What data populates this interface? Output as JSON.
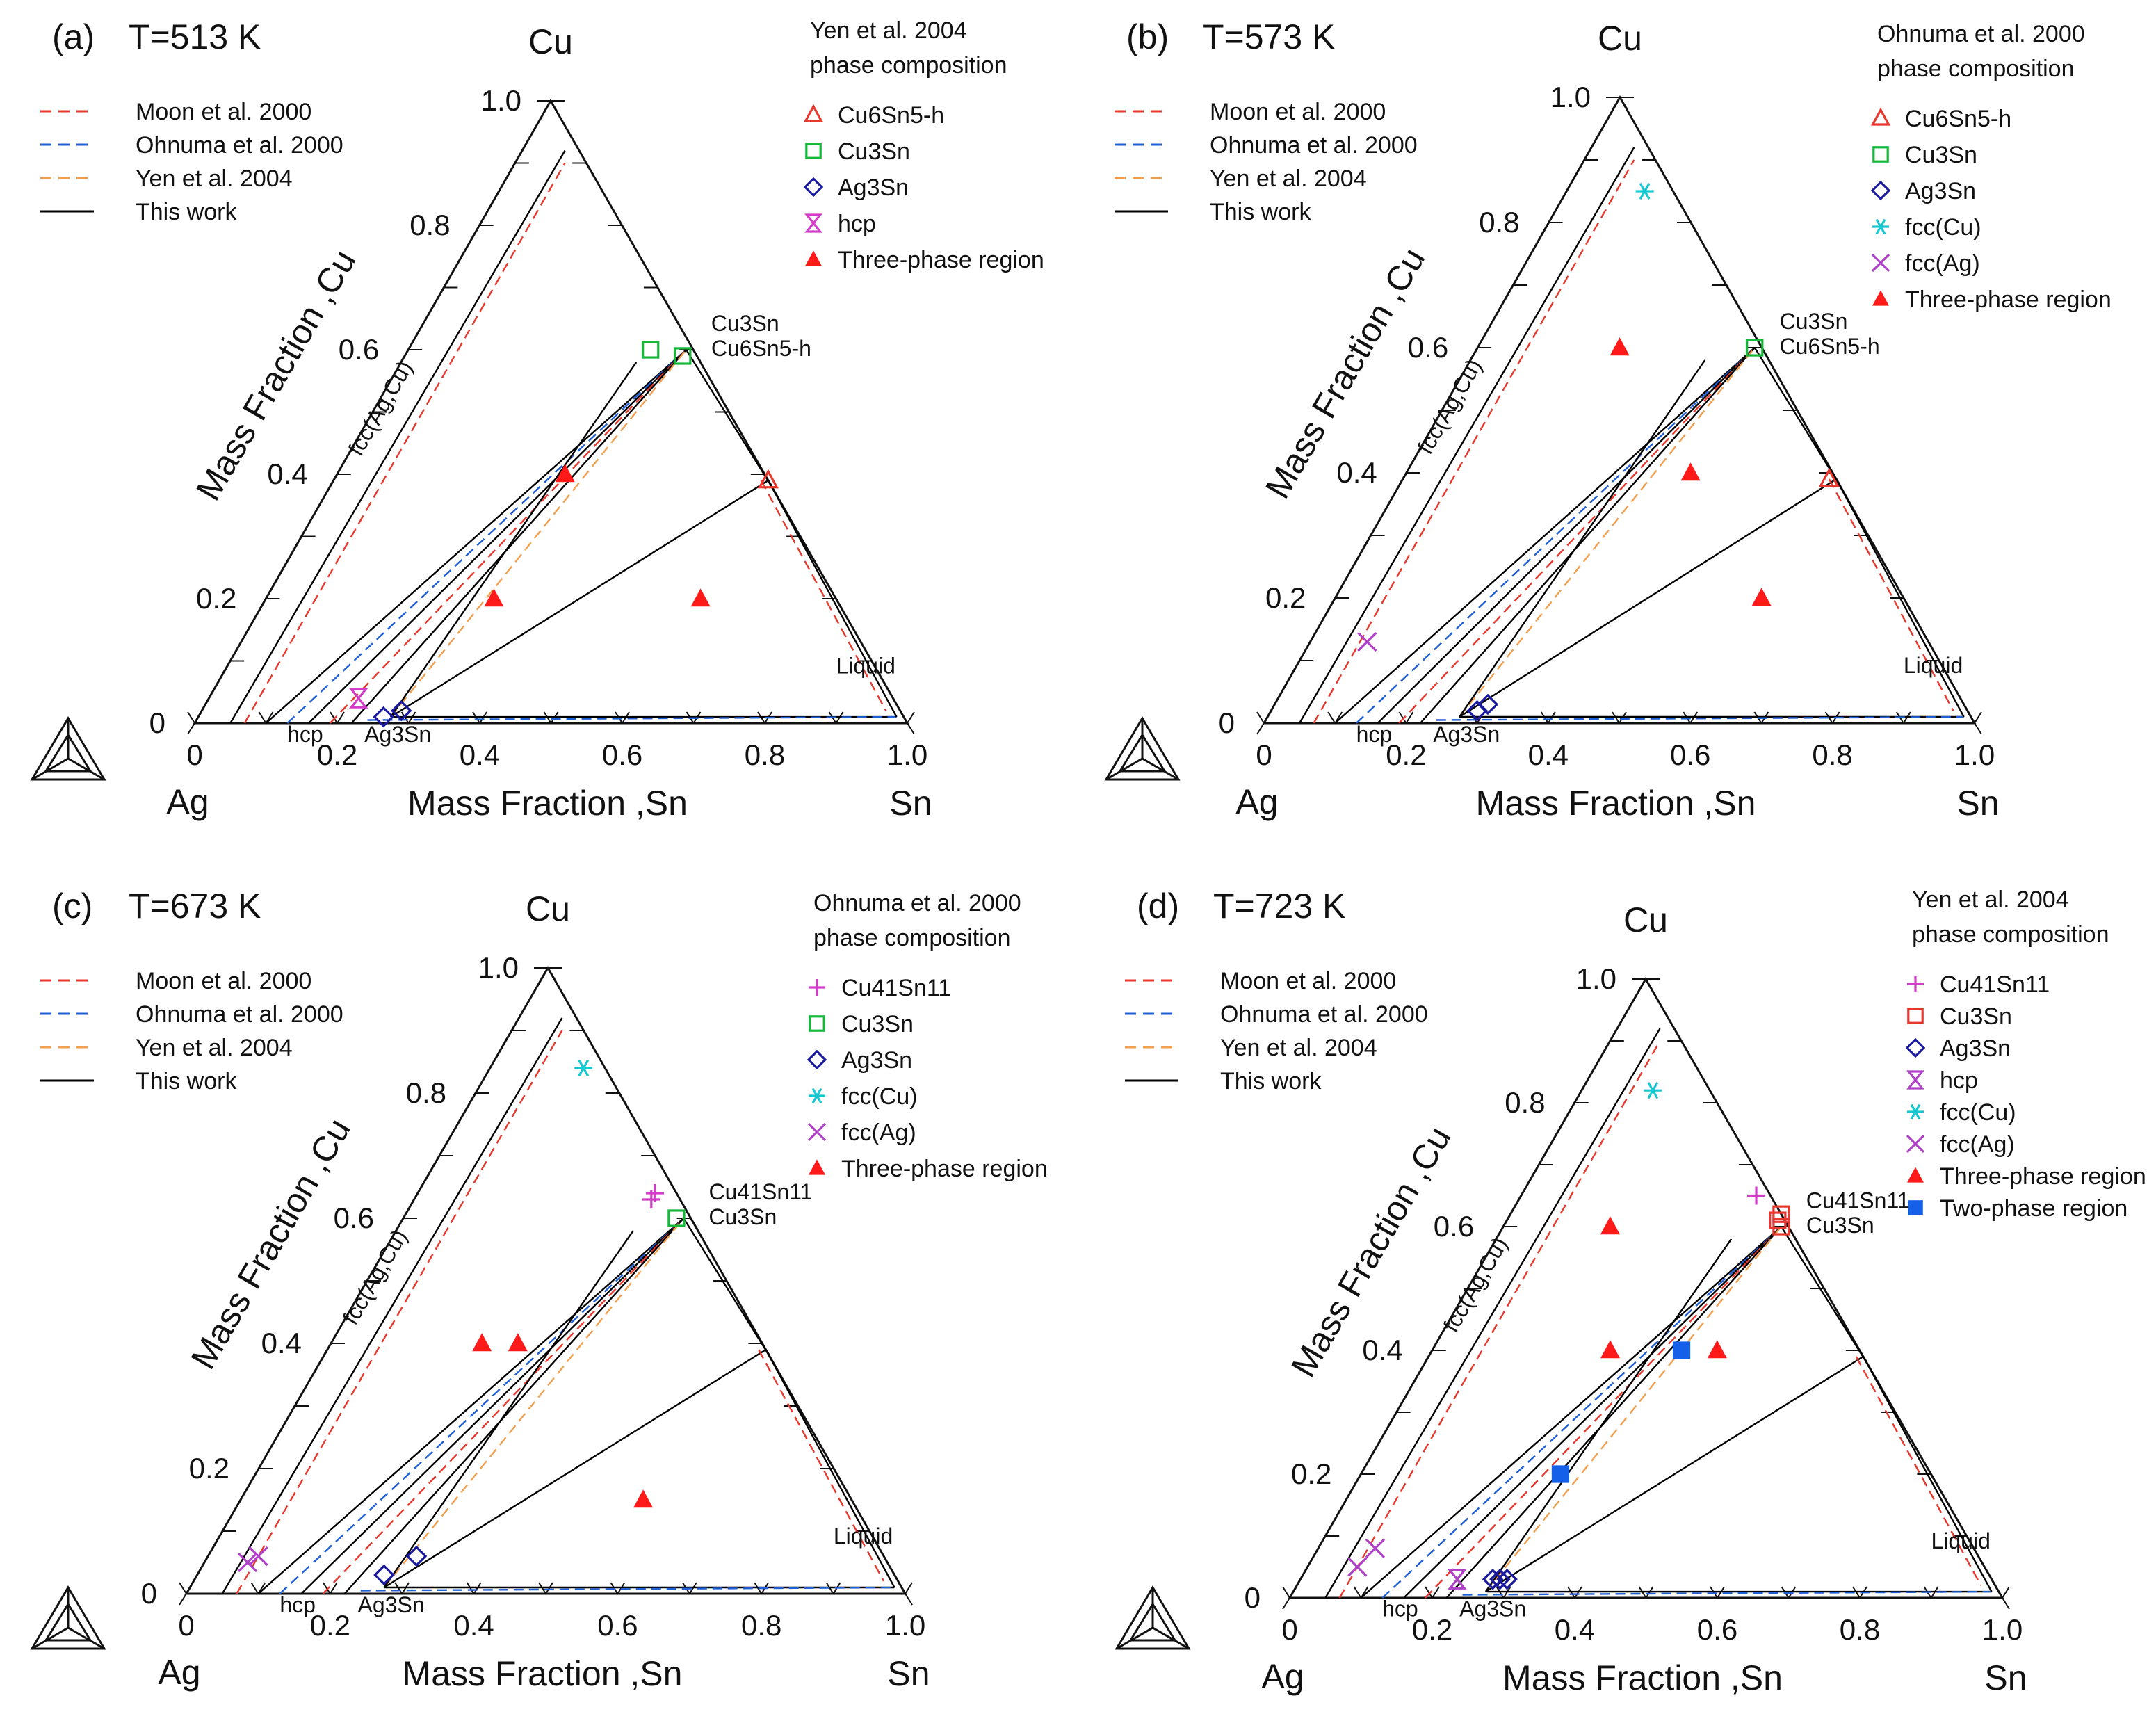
{
  "figure": {
    "axis_title_cu": "Mass Fraction ,Cu",
    "axis_title_sn": "Mass Fraction ,Sn",
    "vertex_cu": "Cu",
    "vertex_ag": "Ag",
    "vertex_sn": "Sn",
    "colors": {
      "moon": "#e8372c",
      "ohnuma": "#1f5fd6",
      "yen": "#f0a050",
      "thiswork": "#000000",
      "tri_red": "#ff1a1a",
      "square_blue": "#1560e8"
    }
  },
  "chart_data": [
    {
      "type": "scatter",
      "panel_label": "(a)",
      "temperature": "T=513 K",
      "composition_source": "Yen et al. 2004",
      "composition_caption": "phase composition",
      "axes": {
        "sn_ticks": [
          "0",
          "0.2",
          "0.4",
          "0.6",
          "0.8",
          "1.0"
        ],
        "cu_ticks": [
          "0",
          "0.2",
          "0.4",
          "0.6",
          "0.8",
          "1.0"
        ],
        "sn_range": [
          0,
          1
        ],
        "cu_range": [
          0,
          1
        ]
      },
      "line_legend": [
        "Moon et al. 2000",
        "Ohnuma et al. 2000",
        "Yen et al. 2004",
        "This work"
      ],
      "phase_legend": [
        {
          "label": "Cu6Sn5-h",
          "marker": "triangle-open",
          "color": "#e8372c"
        },
        {
          "label": "Cu3Sn",
          "marker": "square-open",
          "color": "#16b83a"
        },
        {
          "label": "Ag3Sn",
          "marker": "diamond-open",
          "color": "#1a1aa0"
        },
        {
          "label": "hcp",
          "marker": "hourglass",
          "color": "#d23cc8"
        },
        {
          "label": "Three-phase region",
          "marker": "triangle-filled",
          "color": "#ff1a1a"
        }
      ],
      "region_labels": [
        "fcc(Ag,Cu)",
        "Cu3Sn",
        "Cu6Sn5-h",
        "Liquid",
        "hcp",
        "Ag3Sn"
      ],
      "markers": [
        {
          "phase": "Cu3Sn",
          "sn": 0.34,
          "cu": 0.6
        },
        {
          "phase": "Cu3Sn",
          "sn": 0.39,
          "cu": 0.59
        },
        {
          "phase": "Cu6Sn5-h",
          "sn": 0.61,
          "cu": 0.39
        },
        {
          "phase": "Ag3Sn",
          "sn": 0.26,
          "cu": 0.01
        },
        {
          "phase": "Ag3Sn",
          "sn": 0.28,
          "cu": 0.02
        },
        {
          "phase": "hcp",
          "sn": 0.21,
          "cu": 0.04
        },
        {
          "phase": "Three-phase region",
          "sn": 0.32,
          "cu": 0.4
        },
        {
          "phase": "Three-phase region",
          "sn": 0.32,
          "cu": 0.2
        },
        {
          "phase": "Three-phase region",
          "sn": 0.61,
          "cu": 0.2
        }
      ]
    },
    {
      "type": "scatter",
      "panel_label": "(b)",
      "temperature": "T=573 K",
      "composition_source": "Ohnuma et al. 2000",
      "composition_caption": "phase composition",
      "axes": {
        "sn_ticks": [
          "0",
          "0.2",
          "0.4",
          "0.6",
          "0.8",
          "1.0"
        ],
        "cu_ticks": [
          "0",
          "0.2",
          "0.4",
          "0.6",
          "0.8",
          "1.0"
        ],
        "sn_range": [
          0,
          1
        ],
        "cu_range": [
          0,
          1
        ]
      },
      "line_legend": [
        "Moon et al. 2000",
        "Ohnuma et al. 2000",
        "Yen et al. 2004",
        "This work"
      ],
      "phase_legend": [
        {
          "label": "Cu6Sn5-h",
          "marker": "triangle-open",
          "color": "#e8372c"
        },
        {
          "label": "Cu3Sn",
          "marker": "square-open",
          "color": "#16b83a"
        },
        {
          "label": "Ag3Sn",
          "marker": "diamond-open",
          "color": "#1a1aa0"
        },
        {
          "label": "fcc(Cu)",
          "marker": "asterisk",
          "color": "#18c8d0"
        },
        {
          "label": "fcc(Ag)",
          "marker": "cross",
          "color": "#b040c8"
        },
        {
          "label": "Three-phase region",
          "marker": "triangle-filled",
          "color": "#ff1a1a"
        }
      ],
      "region_labels": [
        "fcc(Ag,Cu)",
        "Cu3Sn",
        "Cu6Sn5-h",
        "Liquid",
        "hcp",
        "Ag3Sn"
      ],
      "markers": [
        {
          "phase": "fcc(Cu)",
          "sn": 0.11,
          "cu": 0.85
        },
        {
          "phase": "Cu3Sn",
          "sn": 0.39,
          "cu": 0.6
        },
        {
          "phase": "Cu6Sn5-h",
          "sn": 0.6,
          "cu": 0.39
        },
        {
          "phase": "fcc(Ag)",
          "sn": 0.08,
          "cu": 0.13
        },
        {
          "phase": "Ag3Sn",
          "sn": 0.29,
          "cu": 0.02
        },
        {
          "phase": "Ag3Sn",
          "sn": 0.3,
          "cu": 0.03
        },
        {
          "phase": "Three-phase region",
          "sn": 0.2,
          "cu": 0.6
        },
        {
          "phase": "Three-phase region",
          "sn": 0.4,
          "cu": 0.4
        },
        {
          "phase": "Three-phase region",
          "sn": 0.6,
          "cu": 0.2
        }
      ]
    },
    {
      "type": "scatter",
      "panel_label": "(c)",
      "temperature": "T=673 K",
      "composition_source": "Ohnuma et al. 2000",
      "composition_caption": "phase composition",
      "axes": {
        "sn_ticks": [
          "0",
          "0.2",
          "0.4",
          "0.6",
          "0.8",
          "1.0"
        ],
        "cu_ticks": [
          "0",
          "0.2",
          "0.4",
          "0.6",
          "0.8",
          "1.0"
        ],
        "sn_range": [
          0,
          1
        ],
        "cu_range": [
          0,
          1
        ]
      },
      "line_legend": [
        "Moon et al. 2000",
        "Ohnuma et al. 2000",
        "Yen et al. 2004",
        "This work"
      ],
      "phase_legend": [
        {
          "label": "Cu41Sn11",
          "marker": "plus",
          "color": "#d23cc8"
        },
        {
          "label": "Cu3Sn",
          "marker": "square-open",
          "color": "#16b83a"
        },
        {
          "label": "Ag3Sn",
          "marker": "diamond-open",
          "color": "#1a1aa0"
        },
        {
          "label": "fcc(Cu)",
          "marker": "asterisk",
          "color": "#18c8d0"
        },
        {
          "label": "fcc(Ag)",
          "marker": "cross",
          "color": "#b040c8"
        },
        {
          "label": "Three-phase region",
          "marker": "triangle-filled",
          "color": "#ff1a1a"
        }
      ],
      "region_labels": [
        "fcc(Ag,Cu)",
        "Cu41Sn11",
        "Cu3Sn",
        "Liquid",
        "hcp",
        "Ag3Sn"
      ],
      "markers": [
        {
          "phase": "fcc(Cu)",
          "sn": 0.13,
          "cu": 0.84
        },
        {
          "phase": "Cu41Sn11",
          "sn": 0.33,
          "cu": 0.63
        },
        {
          "phase": "Cu41Sn11",
          "sn": 0.33,
          "cu": 0.64
        },
        {
          "phase": "Cu3Sn",
          "sn": 0.38,
          "cu": 0.6
        },
        {
          "phase": "fcc(Ag)",
          "sn": 0.06,
          "cu": 0.05
        },
        {
          "phase": "fcc(Ag)",
          "sn": 0.07,
          "cu": 0.06
        },
        {
          "phase": "Ag3Sn",
          "sn": 0.26,
          "cu": 0.03
        },
        {
          "phase": "Ag3Sn",
          "sn": 0.29,
          "cu": 0.06
        },
        {
          "phase": "Three-phase region",
          "sn": 0.21,
          "cu": 0.4
        },
        {
          "phase": "Three-phase region",
          "sn": 0.26,
          "cu": 0.4
        },
        {
          "phase": "Three-phase region",
          "sn": 0.56,
          "cu": 0.15
        }
      ]
    },
    {
      "type": "scatter",
      "panel_label": "(d)",
      "temperature": "T=723 K",
      "composition_source": "Yen et al. 2004",
      "composition_caption": "phase composition",
      "axes": {
        "sn_ticks": [
          "0",
          "0.2",
          "0.4",
          "0.6",
          "0.8",
          "1.0"
        ],
        "cu_ticks": [
          "0",
          "0.2",
          "0.4",
          "0.6",
          "0.8",
          "1.0"
        ],
        "sn_range": [
          0,
          1
        ],
        "cu_range": [
          0,
          1
        ]
      },
      "line_legend": [
        "Moon et al. 2000",
        "Ohnuma et al. 2000",
        "Yen et al. 2004",
        "This work"
      ],
      "phase_legend": [
        {
          "label": "Cu41Sn11",
          "marker": "plus",
          "color": "#d23cc8"
        },
        {
          "label": "Cu3Sn",
          "marker": "square-open",
          "color": "#e8372c"
        },
        {
          "label": "Ag3Sn",
          "marker": "diamond-open",
          "color": "#1a1aa0"
        },
        {
          "label": "hcp",
          "marker": "hourglass",
          "color": "#b040c8"
        },
        {
          "label": "fcc(Cu)",
          "marker": "asterisk",
          "color": "#18c8d0"
        },
        {
          "label": "fcc(Ag)",
          "marker": "cross",
          "color": "#b040c8"
        },
        {
          "label": "Three-phase region",
          "marker": "triangle-filled",
          "color": "#ff1a1a"
        },
        {
          "label": "Two-phase region",
          "marker": "square-filled",
          "color": "#1560e8"
        }
      ],
      "region_labels": [
        "fcc(Ag,Cu)",
        "Cu41Sn11",
        "Cu3Sn",
        "Liquid",
        "hcp",
        "Ag3Sn"
      ],
      "markers": [
        {
          "phase": "fcc(Cu)",
          "sn": 0.1,
          "cu": 0.82
        },
        {
          "phase": "Cu41Sn11",
          "sn": 0.33,
          "cu": 0.65
        },
        {
          "phase": "Cu3Sn",
          "sn": 0.38,
          "cu": 0.62
        },
        {
          "phase": "Cu3Sn",
          "sn": 0.38,
          "cu": 0.61
        },
        {
          "phase": "Cu3Sn",
          "sn": 0.39,
          "cu": 0.6
        },
        {
          "phase": "fcc(Ag)",
          "sn": 0.08,
          "cu": 0.08
        },
        {
          "phase": "fcc(Ag)",
          "sn": 0.07,
          "cu": 0.05
        },
        {
          "phase": "hcp",
          "sn": 0.22,
          "cu": 0.03
        },
        {
          "phase": "Ag3Sn",
          "sn": 0.27,
          "cu": 0.03
        },
        {
          "phase": "Ag3Sn",
          "sn": 0.28,
          "cu": 0.03
        },
        {
          "phase": "Ag3Sn",
          "sn": 0.29,
          "cu": 0.03
        },
        {
          "phase": "Three-phase region",
          "sn": 0.15,
          "cu": 0.6
        },
        {
          "phase": "Three-phase region",
          "sn": 0.25,
          "cu": 0.4
        },
        {
          "phase": "Three-phase region",
          "sn": 0.4,
          "cu": 0.4
        },
        {
          "phase": "Two-phase region",
          "sn": 0.35,
          "cu": 0.4
        },
        {
          "phase": "Two-phase region",
          "sn": 0.28,
          "cu": 0.2
        }
      ]
    }
  ]
}
